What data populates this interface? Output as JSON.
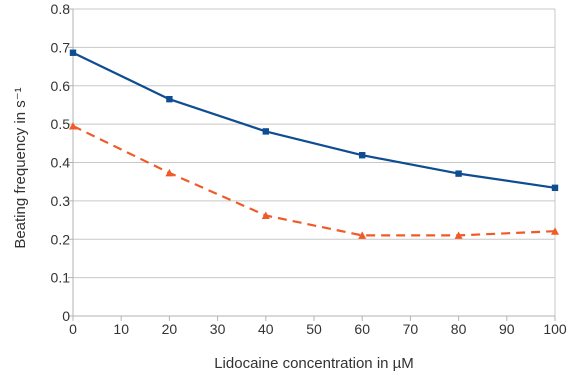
{
  "chart_data": {
    "type": "line",
    "xlabel": "Lidocaine concentration in µM",
    "ylabel": "Beating frequency in s⁻¹",
    "xlim": [
      0,
      100
    ],
    "ylim": [
      0,
      0.8
    ],
    "x_ticks": [
      "0",
      "10",
      "20",
      "30",
      "40",
      "50",
      "60",
      "70",
      "80",
      "90",
      "100"
    ],
    "y_ticks": [
      "0",
      "0.1",
      "0.2",
      "0.3",
      "0.4",
      "0.5",
      "0.6",
      "0.7",
      "0.8"
    ],
    "grid": "horizontal",
    "legend": "none",
    "series": [
      {
        "color": "#0f4d92",
        "line_style": "solid",
        "marker": "square",
        "x": [
          0,
          20,
          40,
          60,
          80,
          100
        ],
        "values": [
          0.686,
          0.565,
          0.481,
          0.419,
          0.371,
          0.334
        ]
      },
      {
        "color": "#f05a28",
        "line_style": "dashed",
        "marker": "triangle",
        "x": [
          0,
          20,
          40,
          60,
          80,
          100
        ],
        "values": [
          0.495,
          0.373,
          0.262,
          0.21,
          0.21,
          0.221
        ]
      }
    ]
  }
}
